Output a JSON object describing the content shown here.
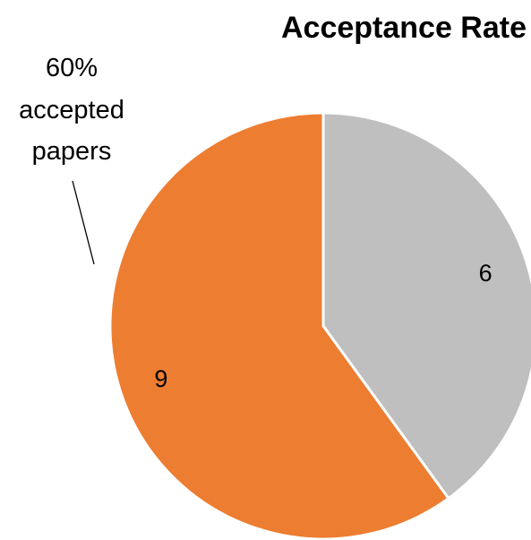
{
  "chart_data": {
    "type": "pie",
    "title": "Acceptance Rate",
    "slices": [
      {
        "value": 6,
        "label": "6",
        "color": "#BFBFBF"
      },
      {
        "value": 9,
        "label": "9",
        "color": "#ED7D31"
      }
    ],
    "annotation": {
      "lines": [
        "60%",
        "accepted",
        "papers"
      ]
    },
    "slice_border_color": "#FFFFFF",
    "legend": "none"
  }
}
